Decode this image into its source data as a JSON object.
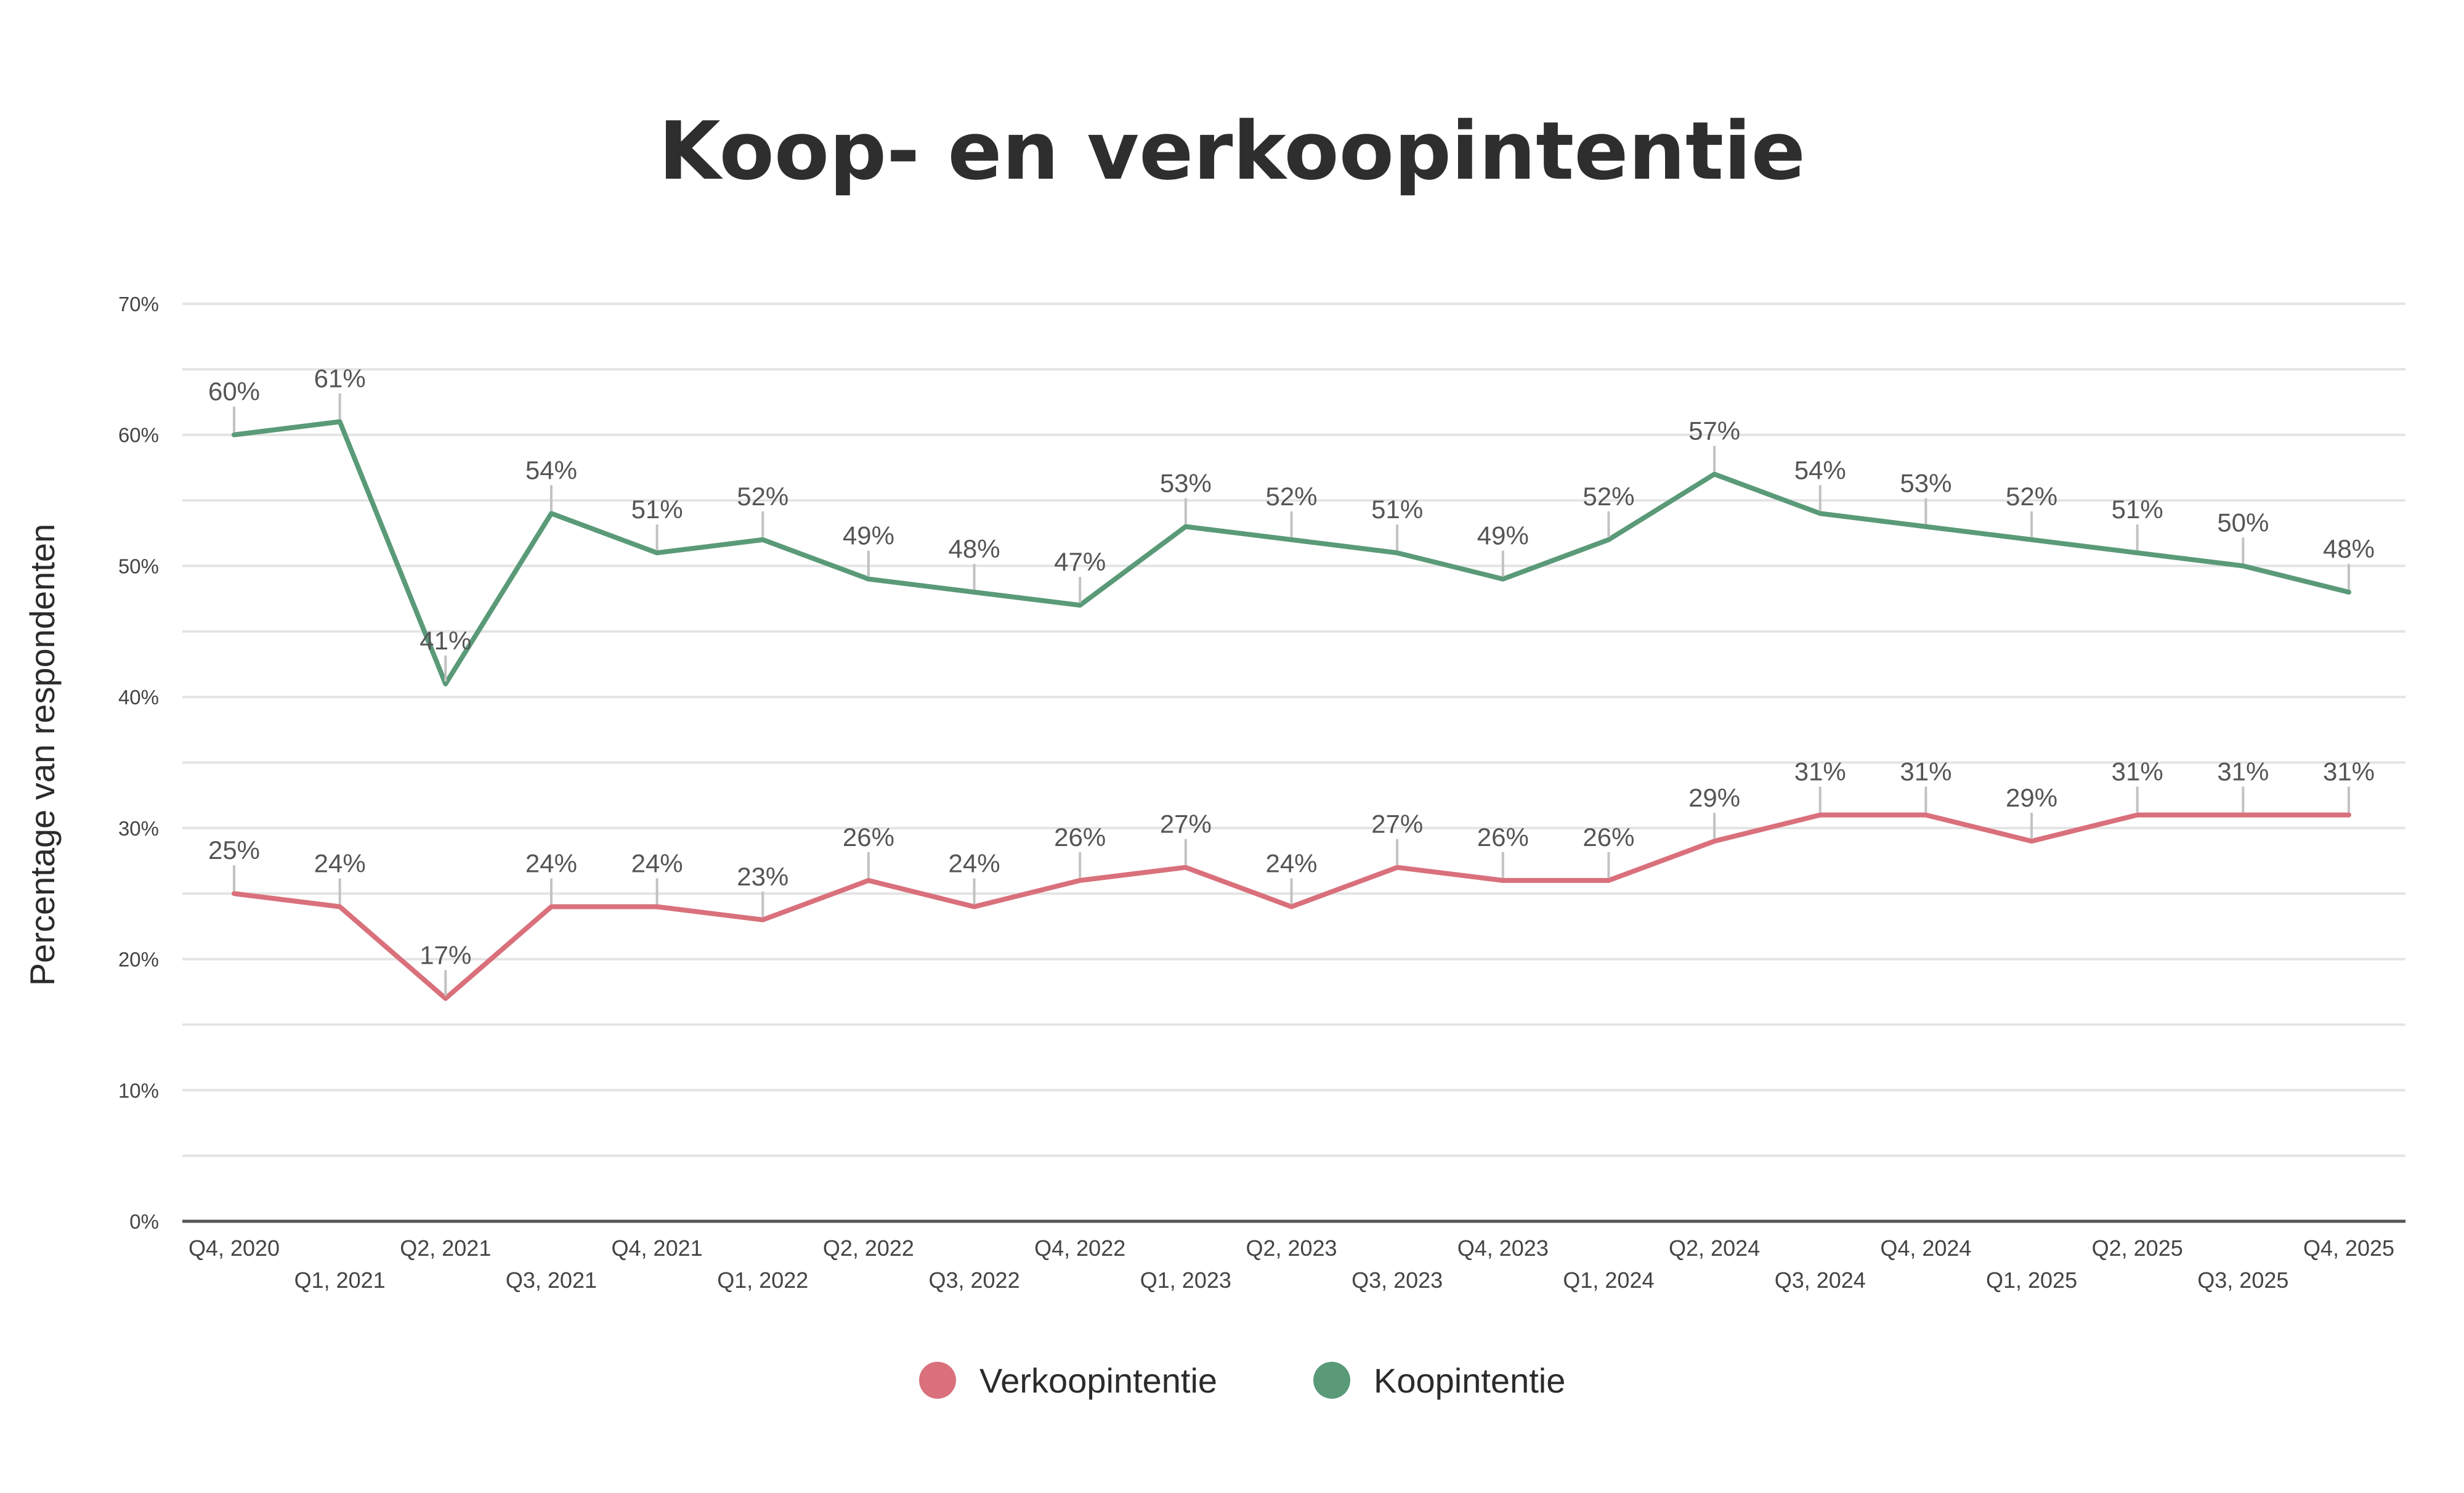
{
  "chart_data": {
    "type": "line",
    "title": "Koop- en verkoopintentie",
    "xlabel": "",
    "ylabel": "Percentage van respondenten",
    "categories": [
      "Q4, 2020",
      "Q1, 2021",
      "Q2, 2021",
      "Q3, 2021",
      "Q4, 2021",
      "Q1, 2022",
      "Q2, 2022",
      "Q3, 2022",
      "Q4, 2022",
      "Q1, 2023",
      "Q2, 2023",
      "Q3, 2023",
      "Q4, 2023",
      "Q1, 2024",
      "Q2, 2024",
      "Q3, 2024",
      "Q4, 2024",
      "Q1, 2025",
      "Q2, 2025",
      "Q3, 2025",
      "Q4, 2025"
    ],
    "y_ticks": [
      "0%",
      "10%",
      "20%",
      "30%",
      "40%",
      "50%",
      "60%",
      "70%"
    ],
    "ylim": [
      0,
      70
    ],
    "grid": true,
    "legend_position": "bottom",
    "series": [
      {
        "name": "Verkoopintentie",
        "color": "#d9707b",
        "values": [
          25,
          24,
          17,
          24,
          24,
          23,
          26,
          24,
          26,
          27,
          24,
          27,
          26,
          26,
          29,
          31,
          31,
          29,
          31,
          31,
          31
        ],
        "labels": [
          "25%",
          "24%",
          "17%",
          "24%",
          "24%",
          "23%",
          "26%",
          "24%",
          "26%",
          "27%",
          "24%",
          "27%",
          "26%",
          "26%",
          "29%",
          "31%",
          "31%",
          "29%",
          "31%",
          "31%",
          "31%"
        ]
      },
      {
        "name": "Koopintentie",
        "color": "#5a9a78",
        "values": [
          60,
          61,
          41,
          54,
          51,
          52,
          49,
          48,
          47,
          53,
          52,
          51,
          49,
          52,
          57,
          54,
          53,
          52,
          51,
          50,
          48
        ],
        "labels": [
          "60%",
          "61%",
          "41%",
          "54%",
          "51%",
          "52%",
          "49%",
          "48%",
          "47%",
          "53%",
          "52%",
          "51%",
          "49%",
          "52%",
          "57%",
          "54%",
          "53%",
          "52%",
          "51%",
          "50%",
          "48%"
        ]
      }
    ]
  }
}
